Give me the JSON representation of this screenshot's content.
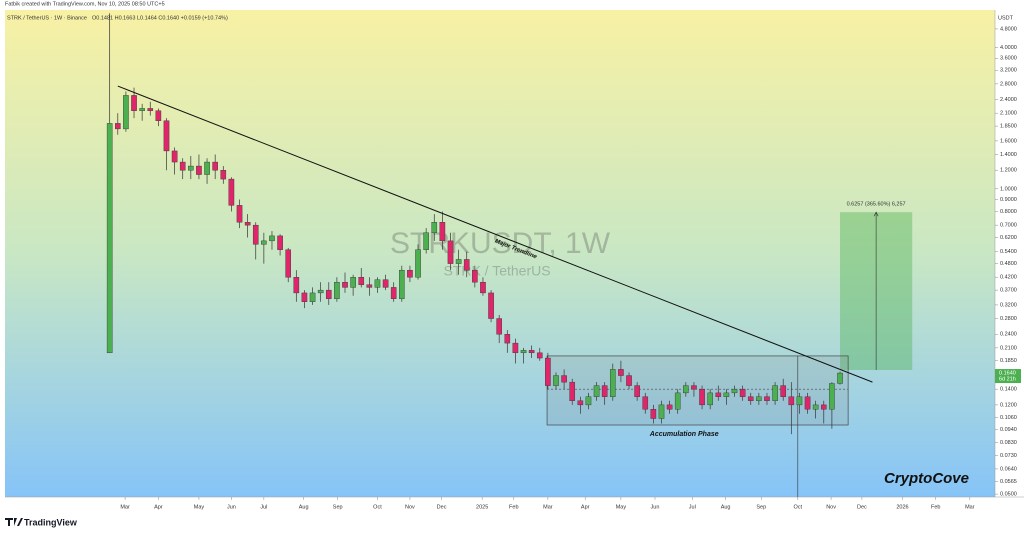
{
  "header": {
    "created": "Fatbik created with TradingView.com, Nov 10, 2025 08:50 UTC+5",
    "symbol": "STRK / TetherUS · 1W · Binance",
    "ohlc": "O0.1481 H0.1663 L0.1464 C0.1640 +0.0159 (+10.74%)"
  },
  "footer": {
    "brand": "TradingView"
  },
  "chart_data": {
    "type": "candlestick",
    "title": "STRKUSDT, 1W",
    "subtitle": "STRK / TetherUS",
    "y_unit": "USDT",
    "log_y": true,
    "ylim": [
      0.0486,
      5.78
    ],
    "yticks": [
      {
        "value": 4.8,
        "label": "4.8000"
      },
      {
        "value": 4,
        "label": "4.0000"
      },
      {
        "value": 3.6,
        "label": "3.6000"
      },
      {
        "value": 3.2,
        "label": "3.2000"
      },
      {
        "value": 2.8,
        "label": "2.8000"
      },
      {
        "value": 2.4,
        "label": "2.4000"
      },
      {
        "value": 2.1,
        "label": "2.1000"
      },
      {
        "value": 1.85,
        "label": "1.8500"
      },
      {
        "value": 1.6,
        "label": "1.6000"
      },
      {
        "value": 1.4,
        "label": "1.4000"
      },
      {
        "value": 1.2,
        "label": "1.2000"
      },
      {
        "value": 1,
        "label": "1.0000"
      },
      {
        "value": 0.9,
        "label": "0.9000"
      },
      {
        "value": 0.8,
        "label": "0.8000"
      },
      {
        "value": 0.7,
        "label": "0.7000"
      },
      {
        "value": 0.62,
        "label": "0.6200"
      },
      {
        "value": 0.54,
        "label": "0.5400"
      },
      {
        "value": 0.48,
        "label": "0.4800"
      },
      {
        "value": 0.42,
        "label": "0.4200"
      },
      {
        "value": 0.37,
        "label": "0.3700"
      },
      {
        "value": 0.32,
        "label": "0.3200"
      },
      {
        "value": 0.28,
        "label": "0.2800"
      },
      {
        "value": 0.24,
        "label": "0.2400"
      },
      {
        "value": 0.21,
        "label": "0.2100"
      },
      {
        "value": 0.185,
        "label": "0.1850"
      },
      {
        "value": 0.14,
        "label": "0.1400"
      },
      {
        "value": 0.12,
        "label": "0.1200"
      },
      {
        "value": 0.106,
        "label": "0.1060"
      },
      {
        "value": 0.094,
        "label": "0.0940"
      },
      {
        "value": 0.083,
        "label": "0.0830"
      },
      {
        "value": 0.073,
        "label": "0.0730"
      },
      {
        "value": 0.064,
        "label": "0.0640"
      },
      {
        "value": 0.0565,
        "label": "0.0565"
      },
      {
        "value": 0.05,
        "label": "0.0500"
      }
    ],
    "xlim": [
      -12.9,
      109.1
    ],
    "xticks": [
      {
        "value": 1.9,
        "label": "Mar"
      },
      {
        "value": 6.0,
        "label": "Apr"
      },
      {
        "value": 11.0,
        "label": "May"
      },
      {
        "value": 15.0,
        "label": "Jun"
      },
      {
        "value": 19.0,
        "label": "Jul"
      },
      {
        "value": 23.9,
        "label": "Aug"
      },
      {
        "value": 28.1,
        "label": "Sep"
      },
      {
        "value": 33.0,
        "label": "Oct"
      },
      {
        "value": 37.0,
        "label": "Nov"
      },
      {
        "value": 40.9,
        "label": "Dec"
      },
      {
        "value": 45.9,
        "label": "2025"
      },
      {
        "value": 49.8,
        "label": "Feb"
      },
      {
        "value": 54.0,
        "label": "Mar"
      },
      {
        "value": 58.6,
        "label": "Apr"
      },
      {
        "value": 63.0,
        "label": "May"
      },
      {
        "value": 67.2,
        "label": "Jun"
      },
      {
        "value": 71.8,
        "label": "Jul"
      },
      {
        "value": 75.9,
        "label": "Aug"
      },
      {
        "value": 80.3,
        "label": "Sep"
      },
      {
        "value": 84.8,
        "label": "Oct"
      },
      {
        "value": 88.9,
        "label": "Nov"
      },
      {
        "value": 92.7,
        "label": "Dec"
      },
      {
        "value": 97.7,
        "label": "2026"
      },
      {
        "value": 101.8,
        "label": "Feb"
      },
      {
        "value": 106.0,
        "label": "Mar"
      }
    ],
    "open": [
      0.2,
      1.9,
      1.8,
      2.5,
      2.15,
      2.2,
      2.15,
      1.95,
      1.45,
      1.3,
      1.2,
      1.25,
      1.15,
      1.3,
      1.2,
      1.1,
      0.85,
      0.72,
      0.7,
      0.58,
      0.6,
      0.63,
      0.55,
      0.42,
      0.36,
      0.33,
      0.36,
      0.37,
      0.34,
      0.4,
      0.38,
      0.42,
      0.39,
      0.38,
      0.41,
      0.38,
      0.34,
      0.45,
      0.42,
      0.55,
      0.65,
      0.72,
      0.6,
      0.48,
      0.5,
      0.45,
      0.4,
      0.36,
      0.28,
      0.24,
      0.22,
      0.2,
      0.205,
      0.2,
      0.19,
      0.145,
      0.16,
      0.15,
      0.125,
      0.12,
      0.13,
      0.145,
      0.13,
      0.17,
      0.16,
      0.145,
      0.13,
      0.115,
      0.105,
      0.12,
      0.115,
      0.135,
      0.145,
      0.14,
      0.12,
      0.135,
      0.13,
      0.135,
      0.14,
      0.13,
      0.125,
      0.13,
      0.125,
      0.145,
      0.13,
      0.12,
      0.13,
      0.115,
      0.12,
      0.115,
      0.1481
    ],
    "high": [
      5.6,
      2.1,
      2.6,
      2.7,
      2.3,
      2.35,
      2.2,
      2.0,
      1.5,
      1.35,
      1.38,
      1.4,
      1.35,
      1.4,
      1.25,
      1.12,
      0.9,
      0.78,
      0.72,
      0.65,
      0.66,
      0.64,
      0.56,
      0.45,
      0.37,
      0.38,
      0.4,
      0.4,
      0.42,
      0.44,
      0.43,
      0.46,
      0.42,
      0.42,
      0.43,
      0.4,
      0.47,
      0.47,
      0.58,
      0.68,
      0.78,
      0.8,
      0.65,
      0.55,
      0.54,
      0.47,
      0.42,
      0.37,
      0.29,
      0.25,
      0.23,
      0.21,
      0.215,
      0.21,
      0.2,
      0.165,
      0.17,
      0.155,
      0.13,
      0.135,
      0.15,
      0.15,
      0.18,
      0.185,
      0.165,
      0.15,
      0.135,
      0.12,
      0.125,
      0.125,
      0.14,
      0.15,
      0.15,
      0.145,
      0.14,
      0.145,
      0.14,
      0.145,
      0.145,
      0.135,
      0.135,
      0.135,
      0.15,
      0.155,
      0.15,
      0.135,
      0.135,
      0.125,
      0.125,
      0.15,
      0.1663
    ],
    "low": [
      0.2,
      1.7,
      1.75,
      2.0,
      1.95,
      2.05,
      1.85,
      1.2,
      1.15,
      1.1,
      1.1,
      1.1,
      1.05,
      1.1,
      1.05,
      0.8,
      0.68,
      0.62,
      0.5,
      0.48,
      0.55,
      0.52,
      0.4,
      0.33,
      0.31,
      0.32,
      0.33,
      0.32,
      0.33,
      0.36,
      0.35,
      0.38,
      0.35,
      0.36,
      0.37,
      0.33,
      0.33,
      0.4,
      0.41,
      0.53,
      0.6,
      0.55,
      0.45,
      0.43,
      0.42,
      0.38,
      0.35,
      0.27,
      0.22,
      0.2,
      0.18,
      0.18,
      0.19,
      0.185,
      0.14,
      0.14,
      0.14,
      0.12,
      0.11,
      0.115,
      0.125,
      0.12,
      0.125,
      0.15,
      0.14,
      0.125,
      0.11,
      0.1,
      0.1,
      0.11,
      0.11,
      0.13,
      0.13,
      0.115,
      0.115,
      0.125,
      0.12,
      0.13,
      0.125,
      0.12,
      0.12,
      0.12,
      0.12,
      0.125,
      0.09,
      0.11,
      0.11,
      0.105,
      0.1,
      0.095,
      0.1464
    ],
    "close": [
      1.9,
      1.8,
      2.5,
      2.15,
      2.2,
      2.15,
      1.95,
      1.45,
      1.3,
      1.2,
      1.25,
      1.15,
      1.3,
      1.2,
      1.1,
      0.85,
      0.72,
      0.7,
      0.58,
      0.6,
      0.63,
      0.55,
      0.42,
      0.36,
      0.33,
      0.36,
      0.37,
      0.34,
      0.4,
      0.38,
      0.42,
      0.39,
      0.38,
      0.41,
      0.38,
      0.34,
      0.45,
      0.42,
      0.55,
      0.65,
      0.72,
      0.6,
      0.48,
      0.5,
      0.45,
      0.4,
      0.36,
      0.28,
      0.24,
      0.22,
      0.2,
      0.205,
      0.2,
      0.19,
      0.145,
      0.16,
      0.15,
      0.125,
      0.12,
      0.13,
      0.145,
      0.13,
      0.17,
      0.16,
      0.145,
      0.13,
      0.115,
      0.105,
      0.12,
      0.115,
      0.135,
      0.145,
      0.14,
      0.12,
      0.135,
      0.13,
      0.135,
      0.14,
      0.13,
      0.125,
      0.13,
      0.125,
      0.145,
      0.13,
      0.12,
      0.13,
      0.115,
      0.12,
      0.115,
      0.148,
      0.164
    ],
    "up_color": "#4caf50",
    "down_color": "#e0266a",
    "last_price": {
      "value": 0.164,
      "label": "0.1640"
    },
    "countdown": "6d 21h",
    "watermark": "CryptoCove",
    "trendline": {
      "x": [
        1.0,
        94.0
      ],
      "y": [
        2.74,
        0.15
      ],
      "label": "Major Trendline",
      "label_x": 47.5,
      "label_y": 0.6
    },
    "range_box": {
      "x": [
        53.9,
        91.0
      ],
      "y": [
        0.0985,
        0.194
      ],
      "mid": 0.14,
      "label": "Accumulation Phase",
      "label_x": 70.8,
      "label_y": 0.09
    },
    "measure": {
      "x": [
        90.0,
        98.9
      ],
      "y": [
        0.169,
        0.795
      ],
      "label": "0.6257 (365.60%) 6,257"
    },
    "vline_x": 84.8
  }
}
